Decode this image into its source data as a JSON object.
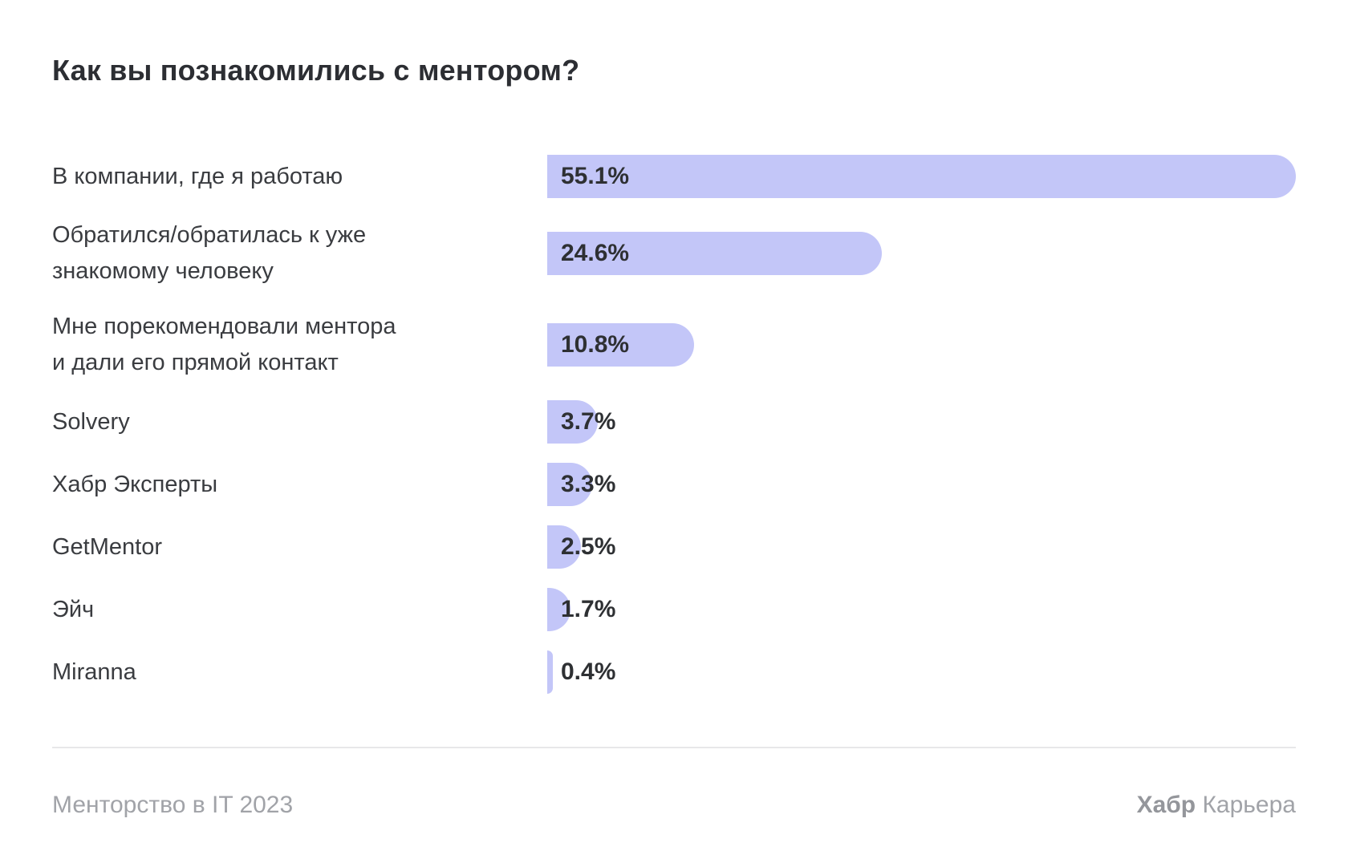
{
  "header": {
    "title": "Как вы познакомились с ментором?"
  },
  "chart_data": {
    "type": "bar",
    "orientation": "horizontal",
    "title": "Как вы познакомились с ментором?",
    "categories": [
      "В компании, где я работаю",
      "Обратился/обратилась к уже\nзнакомому человеку",
      "Мне порекомендовали ментора\nи дали его прямой контакт",
      "Solvery",
      "Хабр Эксперты",
      "GetMentor",
      "Эйч",
      "Miranna"
    ],
    "values": [
      55.1,
      24.6,
      10.8,
      3.7,
      3.3,
      2.5,
      1.7,
      0.4
    ],
    "value_labels": [
      "55.1%",
      "24.6%",
      "10.8%",
      "3.7%",
      "3.3%",
      "2.5%",
      "1.7%",
      "0.4%"
    ],
    "xlim": [
      0,
      55.1
    ],
    "bar_color": "#c3c6f8",
    "value_text_color": "#2e3033",
    "grid": false,
    "legend": false
  },
  "footer": {
    "source": "Менторство в IT 2023",
    "brand_bold": "Хабр",
    "brand_regular": " Карьера"
  }
}
